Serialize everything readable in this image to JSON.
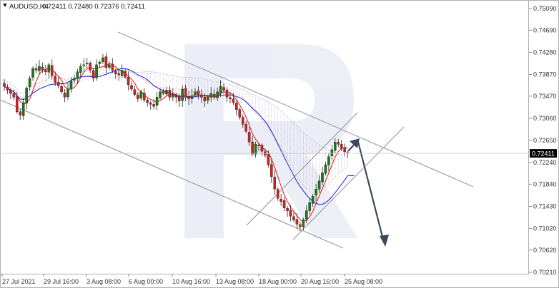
{
  "header": {
    "symbol": "AUDUSD,H4",
    "values": "0.72411 0.72480 0.72376 0.72411"
  },
  "chart_data": {
    "type": "candlestick",
    "title": "",
    "y_ticks": [
      "0.75090",
      "0.74690",
      "0.74280",
      "0.73870",
      "0.73470",
      "0.73060",
      "0.72650",
      "0.72240",
      "0.71840",
      "0.71430",
      "0.71020",
      "0.70620",
      "0.70210"
    ],
    "y_range": [
      0.7021,
      0.7509
    ],
    "x_ticks": [
      "27 Jul 2021",
      "29 Jul 16:00",
      "3 Aug 08:00",
      "6 Aug 00:00",
      "10 Aug 16:00",
      "13 Aug 08:00",
      "18 Aug 00:00",
      "20 Aug 16:00",
      "25 Aug 08:00"
    ],
    "current_price": "0.72411",
    "colors": {
      "bull": "#1a7a1a",
      "bear": "#d62020",
      "fast_ma": "#e01010",
      "slow_ma": "#1a1ae0",
      "channel": "#999999",
      "arrow": "#3a4a5a",
      "price_box": "#000000"
    },
    "closes": [
      0.7365,
      0.7358,
      0.7352,
      0.7345,
      0.7318,
      0.7312,
      0.7335,
      0.7362,
      0.738,
      0.7398,
      0.7395,
      0.7402,
      0.7396,
      0.7392,
      0.7405,
      0.7385,
      0.7372,
      0.7366,
      0.7355,
      0.7345,
      0.736,
      0.7375,
      0.738,
      0.7392,
      0.7402,
      0.7405,
      0.7408,
      0.7395,
      0.738,
      0.7405,
      0.741,
      0.7418,
      0.74,
      0.7405,
      0.7395,
      0.7388,
      0.7386,
      0.7395,
      0.7382,
      0.7368,
      0.736,
      0.735,
      0.7342,
      0.7355,
      0.734,
      0.7335,
      0.7332,
      0.7328,
      0.7345,
      0.7355,
      0.7352,
      0.7358,
      0.7345,
      0.735,
      0.7345,
      0.7338,
      0.736,
      0.7345,
      0.7342,
      0.7348,
      0.7355,
      0.735,
      0.7345,
      0.7338,
      0.7345,
      0.7352,
      0.7345,
      0.7355,
      0.7365,
      0.7358,
      0.7345,
      0.7342,
      0.7335,
      0.7322,
      0.7308,
      0.7295,
      0.7282,
      0.7262,
      0.724,
      0.7258,
      0.7255,
      0.7245,
      0.7238,
      0.722,
      0.7198,
      0.7175,
      0.7158,
      0.7152,
      0.714,
      0.7135,
      0.7125,
      0.7118,
      0.711,
      0.7105,
      0.7118,
      0.7135,
      0.715,
      0.7162,
      0.7175,
      0.719,
      0.7205,
      0.722,
      0.7235,
      0.7248,
      0.7262,
      0.7258,
      0.725,
      0.7244,
      0.7241
    ]
  }
}
